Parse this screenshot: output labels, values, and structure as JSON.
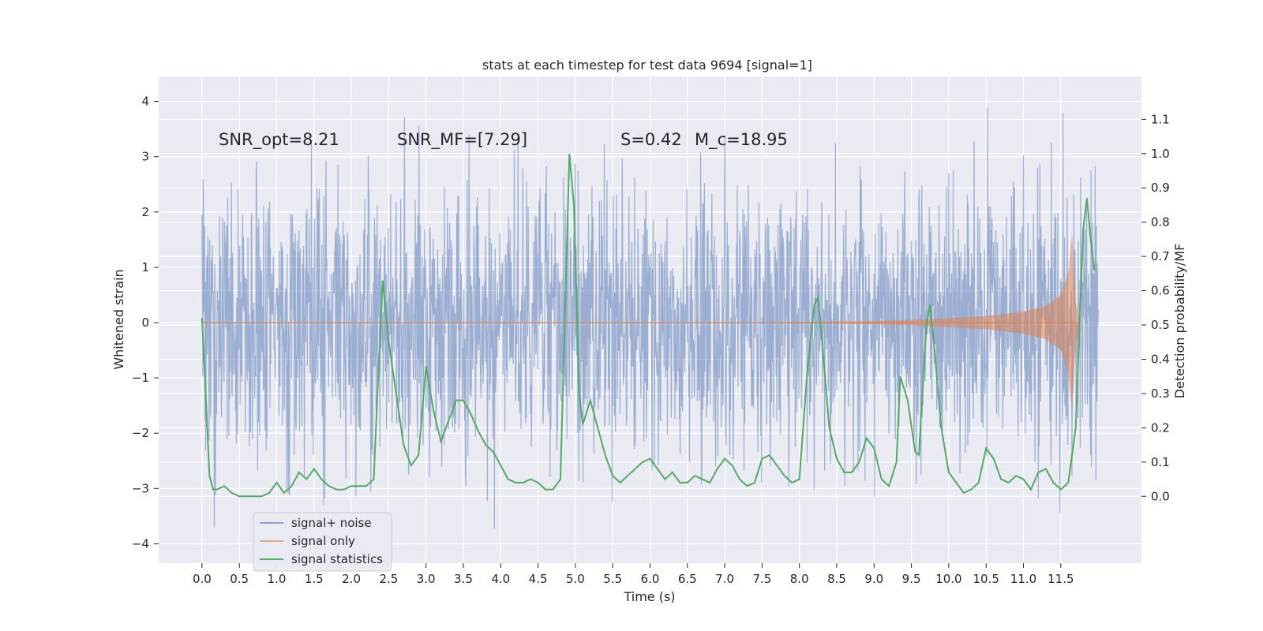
{
  "chart_data": {
    "type": "line",
    "title": "stats at each timestep for test data 9694 [signal=1]",
    "xlabel": "Time (s)",
    "ylabel_left": "Whitened strain",
    "ylabel_right": "Detection probability/MF",
    "xlim": [
      -0.58,
      12.58
    ],
    "ylim_left": [
      -4.35,
      4.45
    ],
    "ylim_right": [
      -0.195,
      1.225
    ],
    "x_ticks": [
      0.0,
      0.5,
      1.0,
      1.5,
      2.0,
      2.5,
      3.0,
      3.5,
      4.0,
      4.5,
      5.0,
      5.5,
      6.0,
      6.5,
      7.0,
      7.5,
      8.0,
      8.5,
      9.0,
      9.5,
      10.0,
      10.5,
      11.0,
      11.5
    ],
    "x_tick_labels": [
      "0.0",
      "0.5",
      "1.0",
      "1.5",
      "2.0",
      "2.5",
      "3.0",
      "3.5",
      "4.0",
      "4.5",
      "5.0",
      "5.5",
      "6.0",
      "6.5",
      "7.0",
      "7.5",
      "8.0",
      "8.5",
      "9.0",
      "9.5",
      "10.0",
      "10.5",
      "11.0",
      "11.5"
    ],
    "y_ticks_left": [
      -4,
      -3,
      -2,
      -1,
      0,
      1,
      2,
      3,
      4
    ],
    "y_tick_labels_left": [
      "−4",
      "−3",
      "−2",
      "−1",
      "0",
      "1",
      "2",
      "3",
      "4"
    ],
    "y_ticks_right": [
      0.0,
      0.1,
      0.2,
      0.3,
      0.4,
      0.5,
      0.6,
      0.7,
      0.8,
      0.9,
      1.0,
      1.1
    ],
    "y_tick_labels_right": [
      "0.0",
      "0.1",
      "0.2",
      "0.3",
      "0.4",
      "0.5",
      "0.6",
      "0.7",
      "0.8",
      "0.9",
      "1.0",
      "1.1"
    ],
    "grid": true,
    "legend_position": "lower-left",
    "annotations": [
      {
        "text": "SNR_opt=8.21",
        "x": 0.2,
        "y": 3.3
      },
      {
        "text": "SNR_MF=[7.29]",
        "x": 2.6,
        "y": 3.3
      },
      {
        "text": "S=0.42",
        "x": 5.6,
        "y": 3.3
      },
      {
        "text": "M_c=18.95",
        "x": 6.6,
        "y": 3.3
      }
    ],
    "series": [
      {
        "name": "signal+ noise",
        "axis": "left",
        "color": "#4c72b0",
        "kind": "noise",
        "x_range": [
          0.0,
          12.0
        ],
        "typical_range": [
          -1.3,
          1.3
        ],
        "max": 4.1,
        "min": -4.1
      },
      {
        "name": "signal only",
        "axis": "left",
        "color": "#dd8452",
        "kind": "chirp",
        "x": [
          7.5,
          8.0,
          8.5,
          9.0,
          9.5,
          10.0,
          10.5,
          11.0,
          11.3,
          11.5,
          11.6,
          11.65,
          11.7,
          11.75
        ],
        "envelope": [
          0.0,
          0.01,
          0.02,
          0.03,
          0.05,
          0.08,
          0.12,
          0.2,
          0.3,
          0.5,
          0.9,
          1.6,
          0.4,
          0.0
        ]
      },
      {
        "name": "signal statistics",
        "axis": "right",
        "color": "#55a868",
        "kind": "line",
        "x": [
          0.0,
          0.05,
          0.1,
          0.15,
          0.2,
          0.3,
          0.4,
          0.5,
          0.6,
          0.7,
          0.8,
          0.9,
          1.0,
          1.1,
          1.2,
          1.3,
          1.4,
          1.5,
          1.6,
          1.7,
          1.8,
          1.9,
          2.0,
          2.1,
          2.2,
          2.3,
          2.35,
          2.42,
          2.5,
          2.6,
          2.7,
          2.8,
          2.9,
          3.0,
          3.1,
          3.2,
          3.3,
          3.4,
          3.5,
          3.6,
          3.7,
          3.8,
          3.9,
          4.0,
          4.1,
          4.2,
          4.3,
          4.4,
          4.5,
          4.6,
          4.7,
          4.8,
          4.85,
          4.92,
          4.98,
          5.05,
          5.1,
          5.2,
          5.3,
          5.4,
          5.5,
          5.6,
          5.7,
          5.8,
          5.9,
          6.0,
          6.1,
          6.2,
          6.3,
          6.4,
          6.5,
          6.6,
          6.7,
          6.8,
          6.9,
          7.0,
          7.1,
          7.2,
          7.3,
          7.4,
          7.5,
          7.6,
          7.7,
          7.8,
          7.9,
          8.0,
          8.1,
          8.2,
          8.25,
          8.3,
          8.4,
          8.5,
          8.6,
          8.7,
          8.8,
          8.9,
          9.0,
          9.1,
          9.2,
          9.3,
          9.35,
          9.45,
          9.55,
          9.6,
          9.7,
          9.75,
          9.8,
          9.9,
          10.0,
          10.1,
          10.2,
          10.3,
          10.4,
          10.5,
          10.6,
          10.7,
          10.8,
          10.9,
          11.0,
          11.1,
          11.2,
          11.3,
          11.4,
          11.5,
          11.6,
          11.7,
          11.8,
          11.85,
          11.9,
          11.95
        ],
        "values": [
          0.52,
          0.3,
          0.06,
          0.02,
          0.02,
          0.03,
          0.01,
          0.0,
          0.0,
          0.0,
          0.0,
          0.01,
          0.04,
          0.01,
          0.03,
          0.07,
          0.05,
          0.08,
          0.05,
          0.03,
          0.02,
          0.02,
          0.03,
          0.03,
          0.03,
          0.05,
          0.3,
          0.63,
          0.45,
          0.3,
          0.15,
          0.09,
          0.12,
          0.38,
          0.25,
          0.16,
          0.22,
          0.28,
          0.28,
          0.24,
          0.19,
          0.15,
          0.13,
          0.09,
          0.05,
          0.04,
          0.04,
          0.05,
          0.04,
          0.02,
          0.02,
          0.05,
          0.45,
          1.0,
          0.85,
          0.3,
          0.21,
          0.28,
          0.2,
          0.12,
          0.06,
          0.04,
          0.06,
          0.08,
          0.1,
          0.11,
          0.08,
          0.05,
          0.07,
          0.04,
          0.04,
          0.06,
          0.05,
          0.04,
          0.08,
          0.11,
          0.09,
          0.05,
          0.03,
          0.04,
          0.11,
          0.12,
          0.09,
          0.06,
          0.04,
          0.05,
          0.35,
          0.56,
          0.58,
          0.46,
          0.2,
          0.11,
          0.07,
          0.07,
          0.1,
          0.17,
          0.14,
          0.05,
          0.03,
          0.1,
          0.35,
          0.28,
          0.13,
          0.12,
          0.5,
          0.56,
          0.45,
          0.2,
          0.07,
          0.04,
          0.01,
          0.02,
          0.04,
          0.14,
          0.11,
          0.05,
          0.04,
          0.06,
          0.05,
          0.02,
          0.07,
          0.08,
          0.04,
          0.02,
          0.04,
          0.2,
          0.78,
          0.87,
          0.75,
          0.66
        ]
      }
    ]
  }
}
